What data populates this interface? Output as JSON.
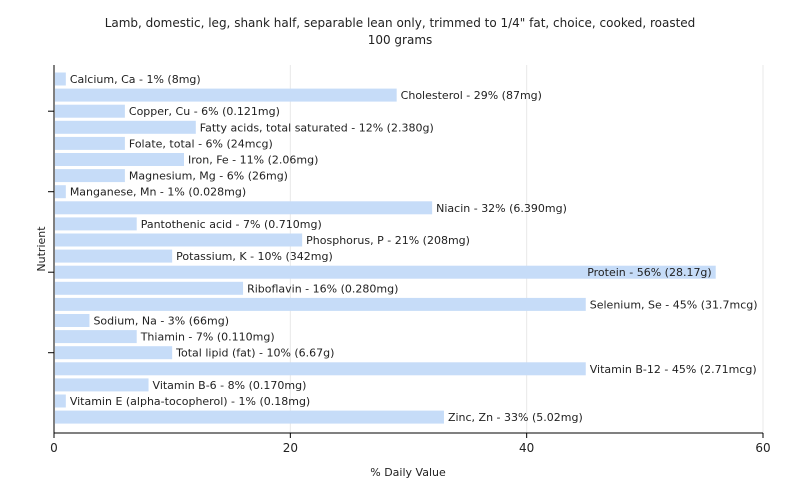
{
  "chart_data": {
    "type": "bar",
    "orientation": "horizontal",
    "title": "Lamb, domestic, leg, shank half, separable lean only, trimmed to 1/4\" fat, choice, cooked, roasted",
    "subtitle": "100 grams",
    "xlabel": "% Daily Value",
    "ylabel": "Nutrient",
    "xlim": [
      0,
      60
    ],
    "xticks": [
      0,
      20,
      40,
      60
    ],
    "grid": true,
    "bar_color": "#c6dcf8",
    "categories": [
      "Calcium, Ca",
      "Cholesterol",
      "Copper, Cu",
      "Fatty acids, total saturated",
      "Folate, total",
      "Iron, Fe",
      "Magnesium, Mg",
      "Manganese, Mn",
      "Niacin",
      "Pantothenic acid",
      "Phosphorus, P",
      "Potassium, K",
      "Protein",
      "Riboflavin",
      "Selenium, Se",
      "Sodium, Na",
      "Thiamin",
      "Total lipid (fat)",
      "Vitamin B-12",
      "Vitamin B-6",
      "Vitamin E (alpha-tocopherol)",
      "Zinc, Zn"
    ],
    "values": [
      1,
      29,
      6,
      12,
      6,
      11,
      6,
      1,
      32,
      7,
      21,
      10,
      56,
      16,
      45,
      3,
      7,
      10,
      45,
      8,
      1,
      33
    ],
    "labels": [
      "Calcium, Ca - 1% (8mg)",
      "Cholesterol - 29% (87mg)",
      "Copper, Cu - 6% (0.121mg)",
      "Fatty acids, total saturated - 12% (2.380g)",
      "Folate, total - 6% (24mcg)",
      "Iron, Fe - 11% (2.06mg)",
      "Magnesium, Mg - 6% (26mg)",
      "Manganese, Mn - 1% (0.028mg)",
      "Niacin - 32% (6.390mg)",
      "Pantothenic acid - 7% (0.710mg)",
      "Phosphorus, P - 21% (208mg)",
      "Potassium, K - 10% (342mg)",
      "Protein - 56% (28.17g)",
      "Riboflavin - 16% (0.280mg)",
      "Selenium, Se - 45% (31.7mcg)",
      "Sodium, Na - 3% (66mg)",
      "Thiamin - 7% (0.110mg)",
      "Total lipid (fat) - 10% (6.67g)",
      "Vitamin B-12 - 45% (2.71mcg)",
      "Vitamin B-6 - 8% (0.170mg)",
      "Vitamin E (alpha-tocopherol) - 1% (0.18mg)",
      "Zinc, Zn - 33% (5.02mg)"
    ]
  }
}
